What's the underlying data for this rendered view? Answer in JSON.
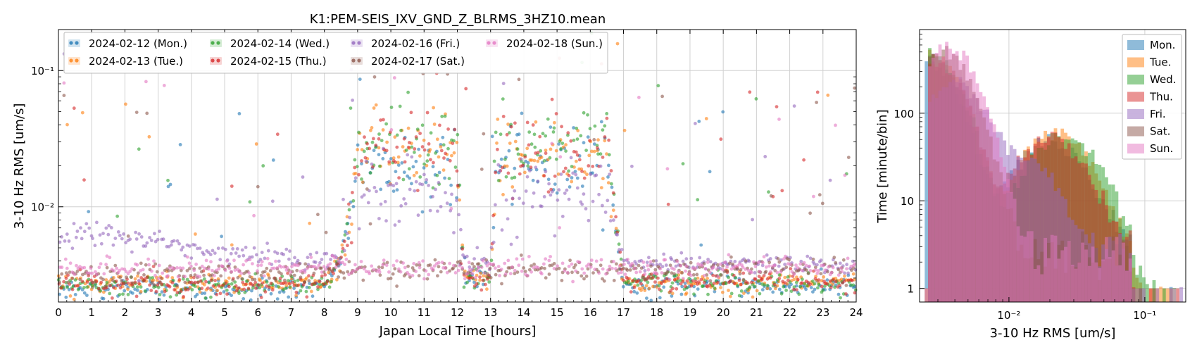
{
  "chart_data": [
    {
      "type": "scatter",
      "title": "K1:PEM-SEIS_IXV_GND_Z_BLRMS_3HZ10.mean",
      "xlabel": "Japan Local Time [hours]",
      "ylabel": "3-10 Hz RMS [um/s]",
      "xlim": [
        0,
        24
      ],
      "ylim": [
        0.002,
        0.2
      ],
      "yscale": "log",
      "grid": true,
      "legend_position": "top-left",
      "x_ticks": [
        "0",
        "1",
        "2",
        "3",
        "4",
        "5",
        "6",
        "7",
        "8",
        "9",
        "10",
        "11",
        "12",
        "13",
        "14",
        "15",
        "16",
        "17",
        "18",
        "19",
        "20",
        "21",
        "22",
        "23",
        "24"
      ],
      "y_ticks": [
        {
          "value": 0.01,
          "label": "10⁻²"
        },
        {
          "value": 0.1,
          "label": "10⁻¹"
        }
      ],
      "series": [
        {
          "name": "2024-02-12 (Mon.)",
          "color": "#1f77b4",
          "baseline": [
            [
              0,
              0.0025
            ],
            [
              8,
              0.0025
            ],
            [
              8.5,
              0.004
            ],
            [
              9,
              0.02
            ],
            [
              12,
              0.02
            ],
            [
              12.2,
              0.003
            ],
            [
              13,
              0.003
            ],
            [
              13.2,
              0.02
            ],
            [
              16.5,
              0.02
            ],
            [
              17,
              0.0026
            ],
            [
              24,
              0.0026
            ]
          ]
        },
        {
          "name": "2024-02-13 (Tue.)",
          "color": "#ff7f0e",
          "baseline": [
            [
              0,
              0.0027
            ],
            [
              8,
              0.0027
            ],
            [
              8.5,
              0.004
            ],
            [
              9,
              0.026
            ],
            [
              12,
              0.025
            ],
            [
              12.2,
              0.003
            ],
            [
              13,
              0.003
            ],
            [
              13.2,
              0.024
            ],
            [
              16.5,
              0.024
            ],
            [
              17,
              0.0027
            ],
            [
              24,
              0.0028
            ]
          ]
        },
        {
          "name": "2024-02-14 (Wed.)",
          "color": "#2ca02c",
          "baseline": [
            [
              0,
              0.0026
            ],
            [
              8,
              0.0026
            ],
            [
              8.5,
              0.004
            ],
            [
              9,
              0.027
            ],
            [
              12,
              0.027
            ],
            [
              12.2,
              0.003
            ],
            [
              13,
              0.003
            ],
            [
              13.2,
              0.028
            ],
            [
              16.5,
              0.028
            ],
            [
              17,
              0.0028
            ],
            [
              24,
              0.0026
            ]
          ]
        },
        {
          "name": "2024-02-15 (Thu.)",
          "color": "#d62728",
          "baseline": [
            [
              0,
              0.0027
            ],
            [
              8,
              0.0027
            ],
            [
              8.5,
              0.004
            ],
            [
              9,
              0.025
            ],
            [
              12,
              0.027
            ],
            [
              12.2,
              0.003
            ],
            [
              13,
              0.003
            ],
            [
              13.2,
              0.025
            ],
            [
              16.5,
              0.025
            ],
            [
              17,
              0.0028
            ],
            [
              24,
              0.0028
            ]
          ]
        },
        {
          "name": "2024-02-16 (Fri.)",
          "color": "#9467bd",
          "baseline": [
            [
              0,
              0.0055
            ],
            [
              1,
              0.0065
            ],
            [
              3,
              0.0055
            ],
            [
              5,
              0.0045
            ],
            [
              7,
              0.0042
            ],
            [
              8,
              0.004
            ],
            [
              8.5,
              0.004
            ],
            [
              9,
              0.012
            ],
            [
              12,
              0.012
            ],
            [
              12.2,
              0.004
            ],
            [
              13,
              0.004
            ],
            [
              13.2,
              0.012
            ],
            [
              16.5,
              0.012
            ],
            [
              17,
              0.004
            ],
            [
              24,
              0.0037
            ]
          ]
        },
        {
          "name": "2024-02-17 (Sat.)",
          "color": "#8c564b",
          "baseline": [
            [
              0,
              0.0032
            ],
            [
              24,
              0.0036
            ]
          ]
        },
        {
          "name": "2024-02-18 (Sun.)",
          "color": "#e377c2",
          "baseline": [
            [
              0,
              0.0035
            ],
            [
              24,
              0.0036
            ]
          ]
        }
      ]
    },
    {
      "type": "histogram",
      "xlabel": "3-10 Hz RMS [um/s]",
      "ylabel": "Time [minute/bin]",
      "xscale": "log",
      "yscale": "log",
      "xlim": [
        0.0022,
        0.2
      ],
      "ylim": [
        0.7,
        900
      ],
      "grid": true,
      "legend_position": "top-right",
      "x_ticks": [
        {
          "value": 0.01,
          "label": "10⁻²"
        },
        {
          "value": 0.1,
          "label": "10⁻¹"
        }
      ],
      "y_ticks": [
        {
          "value": 1,
          "label": "1"
        },
        {
          "value": 10,
          "label": "10"
        },
        {
          "value": 100,
          "label": "100"
        }
      ],
      "series": [
        {
          "name": "Mon.",
          "color": "#1f77b4",
          "peaks": [
            [
              0.0026,
              400
            ],
            [
              0.02,
              45
            ]
          ]
        },
        {
          "name": "Tue.",
          "color": "#ff7f0e",
          "peaks": [
            [
              0.0028,
              450
            ],
            [
              0.022,
              55
            ]
          ]
        },
        {
          "name": "Wed.",
          "color": "#2ca02c",
          "peaks": [
            [
              0.0027,
              480
            ],
            [
              0.025,
              55
            ]
          ]
        },
        {
          "name": "Thu.",
          "color": "#d62728",
          "peaks": [
            [
              0.0028,
              420
            ],
            [
              0.02,
              50
            ]
          ]
        },
        {
          "name": "Fri.",
          "color": "#9467bd",
          "peaks": [
            [
              0.004,
              230
            ],
            [
              0.012,
              30
            ]
          ]
        },
        {
          "name": "Sat.",
          "color": "#8c564b",
          "peaks": [
            [
              0.0033,
              500
            ]
          ]
        },
        {
          "name": "Sun.",
          "color": "#e377c2",
          "peaks": [
            [
              0.0036,
              550
            ]
          ]
        }
      ]
    }
  ]
}
